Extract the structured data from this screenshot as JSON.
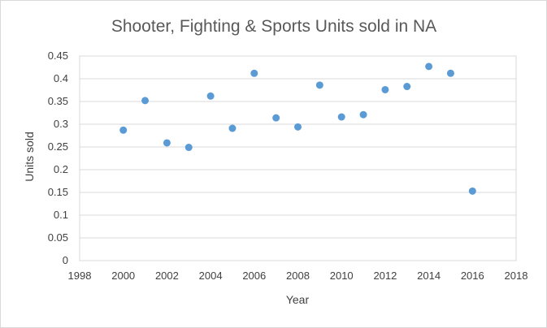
{
  "chart_data": {
    "type": "scatter",
    "title": "Shooter, Fighting & Sports Units sold in NA",
    "xlabel": "Year",
    "ylabel": "Units sold",
    "xlim": [
      1998,
      2018
    ],
    "ylim": [
      0,
      0.45
    ],
    "x_ticks": [
      "1998",
      "2000",
      "2002",
      "2004",
      "2006",
      "2008",
      "2010",
      "2012",
      "2014",
      "2016",
      "2018"
    ],
    "y_ticks": [
      "0",
      "0.05",
      "0.1",
      "0.15",
      "0.2",
      "0.25",
      "0.3",
      "0.35",
      "0.4",
      "0.45"
    ],
    "grid": "horizontal",
    "legend": "none",
    "marker_color": "#5b9bd5",
    "points": [
      {
        "x": 2000,
        "y": 0.287
      },
      {
        "x": 2001,
        "y": 0.352
      },
      {
        "x": 2002,
        "y": 0.259
      },
      {
        "x": 2003,
        "y": 0.249
      },
      {
        "x": 2004,
        "y": 0.362
      },
      {
        "x": 2005,
        "y": 0.291
      },
      {
        "x": 2006,
        "y": 0.412
      },
      {
        "x": 2007,
        "y": 0.314
      },
      {
        "x": 2008,
        "y": 0.294
      },
      {
        "x": 2009,
        "y": 0.386
      },
      {
        "x": 2010,
        "y": 0.316
      },
      {
        "x": 2011,
        "y": 0.321
      },
      {
        "x": 2012,
        "y": 0.376
      },
      {
        "x": 2013,
        "y": 0.383
      },
      {
        "x": 2014,
        "y": 0.427
      },
      {
        "x": 2015,
        "y": 0.412
      },
      {
        "x": 2016,
        "y": 0.153
      }
    ]
  }
}
